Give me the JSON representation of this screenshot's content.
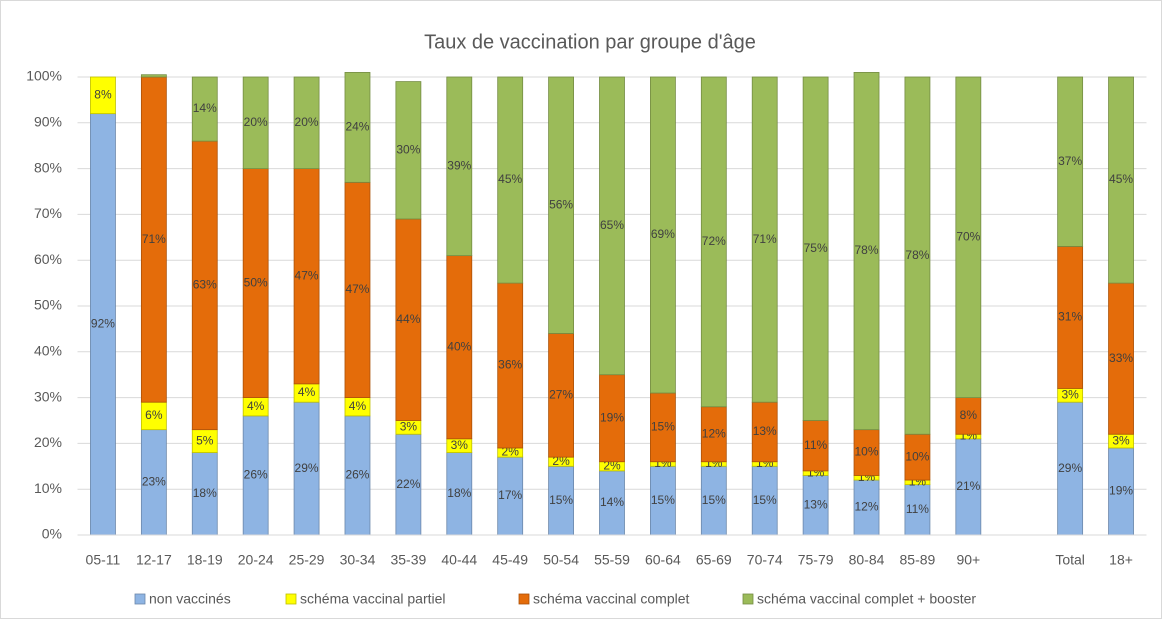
{
  "chart_data": {
    "type": "bar",
    "stacked": true,
    "title": "Taux de vaccination par groupe d'âge",
    "categories": [
      "05-11",
      "12-17",
      "18-19",
      "20-24",
      "25-29",
      "30-34",
      "35-39",
      "40-44",
      "45-49",
      "50-54",
      "55-59",
      "60-64",
      "65-69",
      "70-74",
      "75-79",
      "80-84",
      "85-89",
      "90+",
      null,
      "Total",
      "18+"
    ],
    "series": [
      {
        "name": "non vaccinés",
        "color": "#8eb4e3",
        "values": [
          92,
          23,
          18,
          26,
          29,
          26,
          22,
          18,
          17,
          15,
          14,
          15,
          15,
          15,
          13,
          12,
          11,
          21,
          null,
          29,
          19
        ],
        "value_labels": [
          "92%",
          "23%",
          "18%",
          "26%",
          "29%",
          "26%",
          "22%",
          "18%",
          "17%",
          "15%",
          "14%",
          "15%",
          "15%",
          "15%",
          "13%",
          "12%",
          "11%",
          "21%",
          null,
          "29%",
          "19%"
        ]
      },
      {
        "name": "schéma vaccinal partiel",
        "color": "#ffff00",
        "values": [
          8,
          6,
          5,
          4,
          4,
          4,
          3,
          3,
          2,
          2,
          2,
          1,
          1,
          1,
          1,
          1,
          1,
          1,
          null,
          3,
          3
        ],
        "value_labels": [
          "8%",
          "6%",
          "5%",
          "4%",
          "4%",
          "4%",
          "3%",
          "3%",
          "2%",
          "2%",
          "2%",
          "1%",
          "1%",
          "1%",
          "1%",
          "1%",
          "1%",
          "1%",
          null,
          "3%",
          "3%"
        ]
      },
      {
        "name": "schéma vaccinal complet",
        "color": "#e46c0a",
        "values": [
          0,
          71,
          63,
          50,
          47,
          47,
          44,
          40,
          36,
          27,
          19,
          15,
          12,
          13,
          11,
          10,
          10,
          8,
          null,
          31,
          33
        ],
        "value_labels": [
          null,
          "71%",
          "63%",
          "50%",
          "47%",
          "47%",
          "44%",
          "40%",
          "36%",
          "27%",
          "19%",
          "15%",
          "12%",
          "13%",
          "11%",
          "10%",
          "10%",
          "8%",
          null,
          "31%",
          "33%"
        ]
      },
      {
        "name": "schéma vaccinal complet + booster",
        "color": "#9bbb59",
        "values": [
          0,
          0.5,
          14,
          20,
          20,
          24,
          30,
          39,
          45,
          56,
          65,
          69,
          72,
          71,
          75,
          78,
          78,
          70,
          null,
          37,
          45
        ],
        "value_labels": [
          null,
          null,
          "14%",
          "20%",
          "20%",
          "24%",
          "30%",
          "39%",
          "45%",
          "56%",
          "65%",
          "69%",
          "72%",
          "71%",
          "75%",
          "78%",
          "78%",
          "70%",
          null,
          "37%",
          "45%"
        ]
      }
    ],
    "ylim": [
      0,
      100
    ],
    "yticks": [
      {
        "value": 0,
        "label": "0%"
      },
      {
        "value": 10,
        "label": "10%"
      },
      {
        "value": 20,
        "label": "20%"
      },
      {
        "value": 30,
        "label": "30%"
      },
      {
        "value": 40,
        "label": "40%"
      },
      {
        "value": 50,
        "label": "50%"
      },
      {
        "value": 60,
        "label": "60%"
      },
      {
        "value": 70,
        "label": "70%"
      },
      {
        "value": 80,
        "label": "80%"
      },
      {
        "value": 90,
        "label": "90%"
      },
      {
        "value": 100,
        "label": "100%"
      }
    ],
    "grid": true,
    "legend": "bottom"
  }
}
